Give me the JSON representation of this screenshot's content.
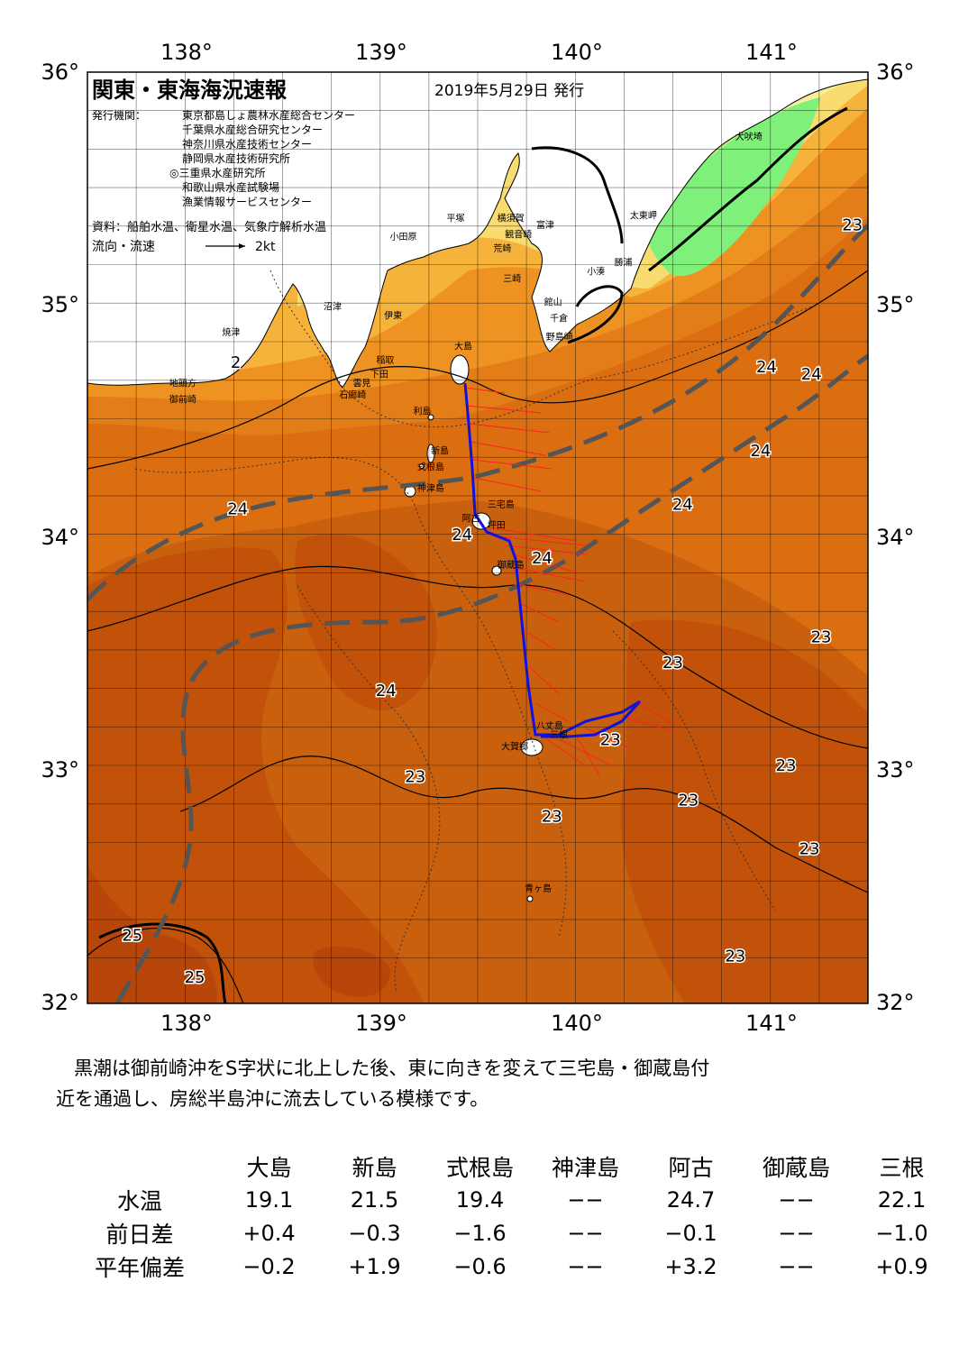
{
  "title": "関東・東海海況速報",
  "date": "2019年5月29日 発行",
  "issuers_label": "発行機関：",
  "issuers": [
    "東京都島しょ農林水産総合センター",
    "千葉県水産総合研究センター",
    "神奈川県水産技術センター",
    "静岡県水産技術研究所",
    "◎三重県水産研究所",
    "和歌山県水産試験場",
    "漁業情報サービスセンター"
  ],
  "source": "資料：船舶水温、衛星水温、気象庁解析水温",
  "legend": {
    "label": "流向・流速",
    "speed": "2kt"
  },
  "axes": {
    "lon_labels": [
      "138°",
      "139°",
      "140°",
      "141°"
    ],
    "lat_labels": [
      "36°",
      "35°",
      "34°",
      "33°",
      "32°"
    ],
    "lon_range": [
      137.5,
      141.5
    ],
    "lat_range": [
      32,
      36
    ]
  },
  "place_names": [
    {
      "name": "犬吠埼",
      "lon": 140.82,
      "lat": 35.71
    },
    {
      "name": "太東岬",
      "lon": 140.28,
      "lat": 35.37
    },
    {
      "name": "勝浦",
      "lon": 140.2,
      "lat": 35.17
    },
    {
      "name": "小湊",
      "lon": 140.06,
      "lat": 35.13
    },
    {
      "name": "富津",
      "lon": 139.8,
      "lat": 35.33
    },
    {
      "name": "館山",
      "lon": 139.84,
      "lat": 35.0
    },
    {
      "name": "千倉",
      "lon": 139.87,
      "lat": 34.93
    },
    {
      "name": "野島崎",
      "lon": 139.85,
      "lat": 34.85
    },
    {
      "name": "横須賀",
      "lon": 139.6,
      "lat": 35.36
    },
    {
      "name": "観音崎",
      "lon": 139.64,
      "lat": 35.29
    },
    {
      "name": "荒崎",
      "lon": 139.58,
      "lat": 35.23
    },
    {
      "name": "三崎",
      "lon": 139.63,
      "lat": 35.1
    },
    {
      "name": "平塚",
      "lon": 139.34,
      "lat": 35.36
    },
    {
      "name": "小田原",
      "lon": 139.05,
      "lat": 35.28
    },
    {
      "name": "沼津",
      "lon": 138.71,
      "lat": 34.98
    },
    {
      "name": "伊東",
      "lon": 139.02,
      "lat": 34.94
    },
    {
      "name": "焼津",
      "lon": 138.19,
      "lat": 34.87
    },
    {
      "name": "稲取",
      "lon": 138.98,
      "lat": 34.75
    },
    {
      "name": "下田",
      "lon": 138.95,
      "lat": 34.69
    },
    {
      "name": "雲見",
      "lon": 138.86,
      "lat": 34.65
    },
    {
      "name": "石廊崎",
      "lon": 138.79,
      "lat": 34.6
    },
    {
      "name": "地頭方",
      "lon": 137.92,
      "lat": 34.65
    },
    {
      "name": "御前崎",
      "lon": 137.92,
      "lat": 34.58
    },
    {
      "name": "大島",
      "lon": 139.38,
      "lat": 34.81
    },
    {
      "name": "利島",
      "lon": 139.17,
      "lat": 34.53
    },
    {
      "name": "新島",
      "lon": 139.26,
      "lat": 34.36
    },
    {
      "name": "式根島",
      "lon": 139.19,
      "lat": 34.29
    },
    {
      "name": "神津島",
      "lon": 139.19,
      "lat": 34.2
    },
    {
      "name": "三宅島",
      "lon": 139.55,
      "lat": 34.13
    },
    {
      "name": "阿古",
      "lon": 139.42,
      "lat": 34.07
    },
    {
      "name": "坪田",
      "lon": 139.55,
      "lat": 34.04
    },
    {
      "name": "御蔵島",
      "lon": 139.6,
      "lat": 33.87
    },
    {
      "name": "八丈島",
      "lon": 139.8,
      "lat": 33.18
    },
    {
      "name": "大賀郷",
      "lon": 139.62,
      "lat": 33.09
    },
    {
      "name": "三根",
      "lon": 139.87,
      "lat": 33.14
    },
    {
      "name": "青ヶ島",
      "lon": 139.74,
      "lat": 32.48
    }
  ],
  "temp_labels": [
    {
      "t": "23",
      "lon": 141.42,
      "lat": 35.32
    },
    {
      "t": "24",
      "lon": 140.98,
      "lat": 34.71
    },
    {
      "t": "24",
      "lon": 141.21,
      "lat": 34.68
    },
    {
      "t": "24",
      "lon": 140.95,
      "lat": 34.35
    },
    {
      "t": "24",
      "lon": 140.55,
      "lat": 34.12
    },
    {
      "t": "24",
      "lon": 138.27,
      "lat": 34.1
    },
    {
      "t": "24",
      "lon": 139.42,
      "lat": 33.99
    },
    {
      "t": "24",
      "lon": 139.83,
      "lat": 33.89
    },
    {
      "t": "23",
      "lon": 141.26,
      "lat": 33.55
    },
    {
      "t": "23",
      "lon": 140.5,
      "lat": 33.44
    },
    {
      "t": "24",
      "lon": 139.03,
      "lat": 33.32
    },
    {
      "t": "23",
      "lon": 140.18,
      "lat": 33.11
    },
    {
      "t": "23",
      "lon": 141.08,
      "lat": 33.0
    },
    {
      "t": "23",
      "lon": 139.18,
      "lat": 32.95
    },
    {
      "t": "23",
      "lon": 140.58,
      "lat": 32.85
    },
    {
      "t": "23",
      "lon": 139.88,
      "lat": 32.78
    },
    {
      "t": "23",
      "lon": 141.2,
      "lat": 32.64
    },
    {
      "t": "23",
      "lon": 140.82,
      "lat": 32.18
    },
    {
      "t": "25",
      "lon": 137.73,
      "lat": 32.27
    },
    {
      "t": "25",
      "lon": 138.05,
      "lat": 32.09
    },
    {
      "t": "2",
      "lon": 138.26,
      "lat": 34.73
    }
  ],
  "description": [
    "黒潮は御前崎沖をS字状に北上した後、東に向きを変えて三宅島・御蔵島付",
    "近を通過し、房総半島沖に流去している模様です。"
  ],
  "table": {
    "stations": [
      "大島",
      "新島",
      "式根島",
      "神津島",
      "阿古",
      "御蔵島",
      "三根"
    ],
    "rows": [
      {
        "label": "水温",
        "values": [
          "19.1",
          "21.5",
          "19.4",
          "−−",
          "24.7",
          "−−",
          "22.1"
        ]
      },
      {
        "label": "前日差",
        "values": [
          "+0.4",
          "−0.3",
          "−1.6",
          "−−",
          "−0.1",
          "−−",
          "−1.0"
        ]
      },
      {
        "label": "平年偏差",
        "values": [
          "−0.2",
          "+1.9",
          "−0.6",
          "−−",
          "+3.2",
          "−−",
          "+0.9"
        ]
      }
    ]
  },
  "colors": {
    "deep_orange": "#c2520a",
    "orange": "#dc6e12",
    "light_orange": "#ee9322",
    "yellow_orange": "#f5b33c",
    "yellow": "#f8dc70",
    "pale_yellow": "#f9ef9a",
    "light_green": "#c9ef7a",
    "green": "#7ff07a",
    "kuroshio_axis": "#555555",
    "ship_track": "#1010e0",
    "current_vectors": "#ff2020"
  }
}
